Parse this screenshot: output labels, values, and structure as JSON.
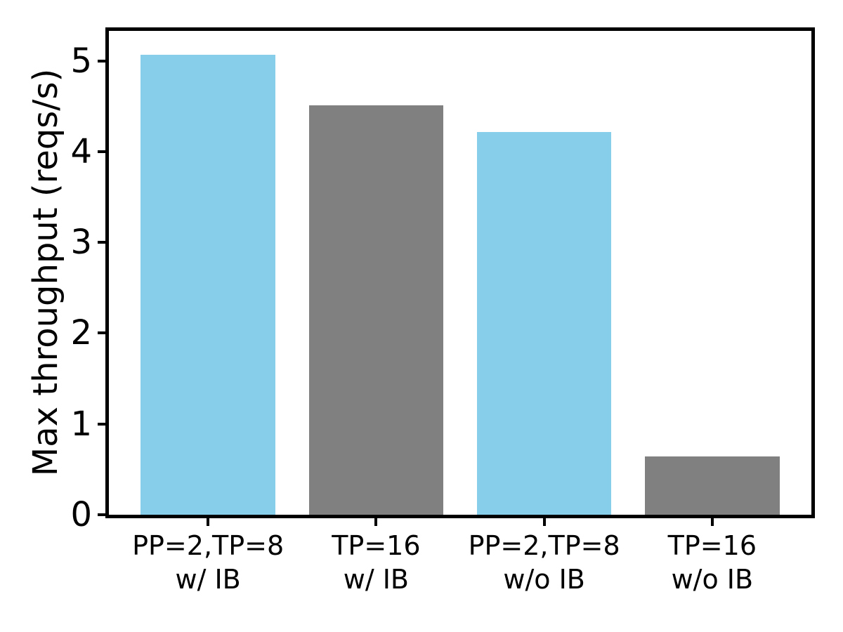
{
  "figure": {
    "background_color": "#ffffff",
    "spine_color": "#000000",
    "text_color": "#000000"
  },
  "chart_data": {
    "type": "bar",
    "title": "",
    "xlabel": "",
    "ylabel": "Max throughput (reqs/s)",
    "categories": [
      [
        "PP=2,TP=8",
        "w/ IB"
      ],
      [
        "TP=16",
        "w/ IB"
      ],
      [
        "PP=2,TP=8",
        "w/o IB"
      ],
      [
        "TP=16",
        "w/o IB"
      ]
    ],
    "values": [
      5.07,
      4.51,
      4.22,
      0.64
    ],
    "bar_colors": [
      "#87CEEB",
      "#808080",
      "#87CEEB",
      "#808080"
    ],
    "yticks": [
      0,
      1,
      2,
      3,
      4,
      5
    ],
    "ylim": [
      0,
      5.33
    ],
    "xlim": [
      -0.59,
      3.59
    ],
    "bar_width_units": 0.8,
    "grid": false,
    "legend": null
  }
}
